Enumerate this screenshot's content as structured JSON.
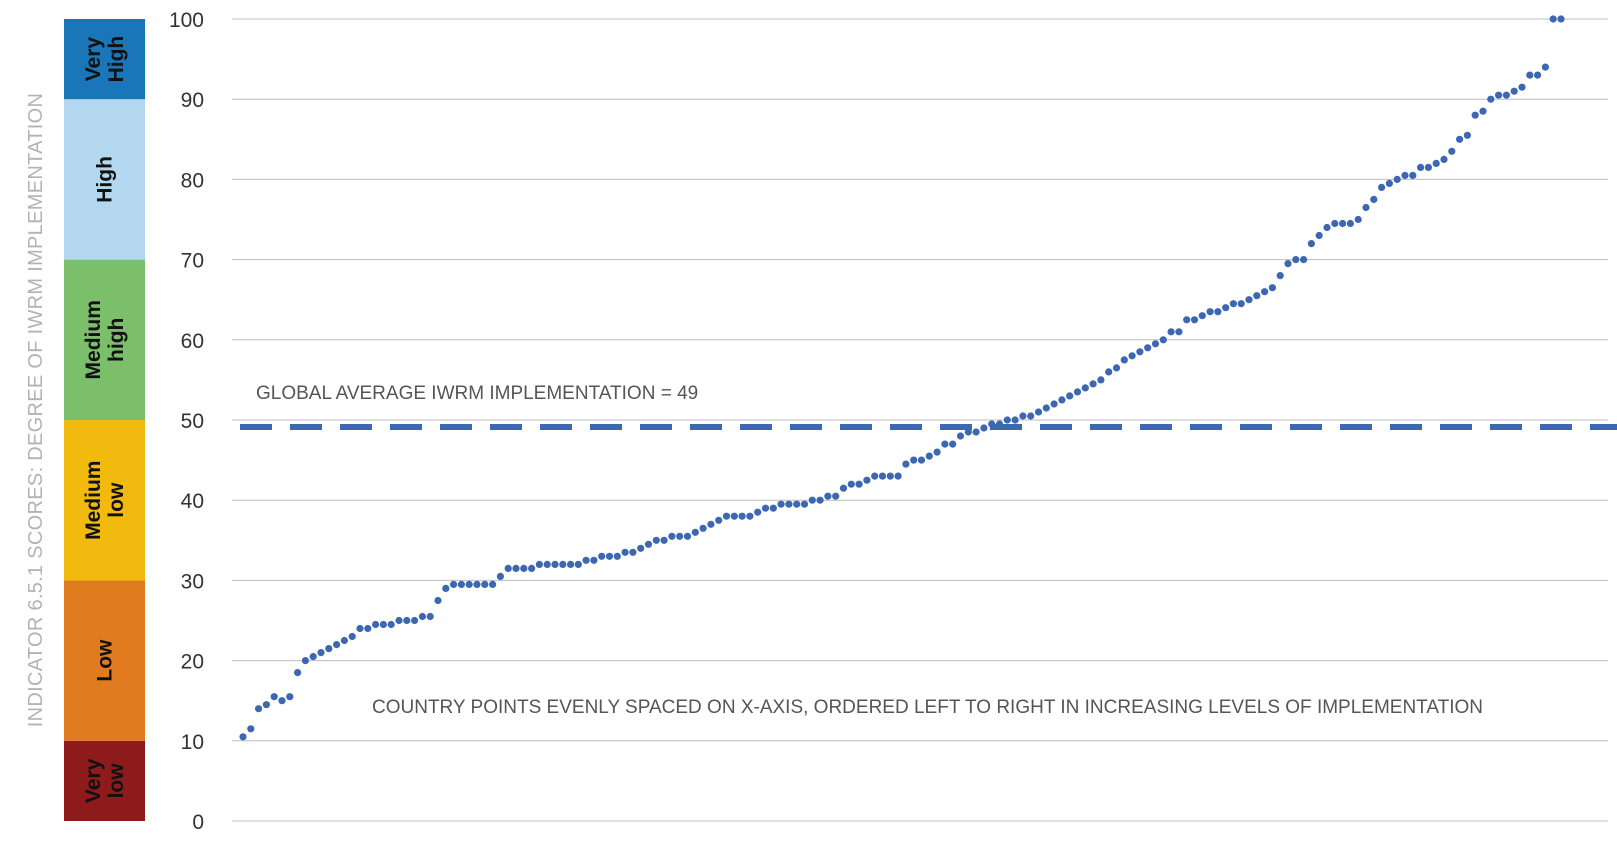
{
  "chart_data": {
    "type": "scatter",
    "ylabel": "INDICATOR 6.5.1 SCORES: DEGREE OF IWRM IMPLEMENTATION",
    "ylim": [
      0,
      100
    ],
    "yticks": [
      0,
      10,
      20,
      30,
      40,
      50,
      60,
      70,
      80,
      90,
      100
    ],
    "grid": true,
    "bands": [
      {
        "label": "Very\nlow",
        "from": 0,
        "to": 10,
        "color": "#8e1b1b"
      },
      {
        "label": "Low",
        "from": 10,
        "to": 30,
        "color": "#e07b20"
      },
      {
        "label": "Medium\nlow",
        "from": 30,
        "to": 50,
        "color": "#f2b90f"
      },
      {
        "label": "Medium\nhigh",
        "from": 50,
        "to": 70,
        "color": "#7cbf6b"
      },
      {
        "label": "High",
        "from": 70,
        "to": 90,
        "color": "#b2d7ee"
      },
      {
        "label": "Very\nHigh",
        "from": 90,
        "to": 100,
        "color": "#1976b8"
      }
    ],
    "reference_line": {
      "value": 49,
      "label": "GLOBAL AVERAGE IWRM IMPLEMENTATION = 49",
      "color": "#3d67b1"
    },
    "annotation": "COUNTRY POINTS EVENLY SPACED ON X-AXIS, ORDERED LEFT TO RIGHT IN INCREASING LEVELS OF IMPLEMENTATION",
    "series": [
      {
        "color": "#3d67b1",
        "values": [
          10.5,
          11.5,
          14,
          14.5,
          15.5,
          15,
          15.5,
          18.5,
          20,
          20.5,
          21,
          21.5,
          22,
          22.5,
          23,
          24,
          24,
          24.5,
          24.5,
          24.5,
          25,
          25,
          25,
          25.5,
          25.5,
          27.5,
          29,
          29.5,
          29.5,
          29.5,
          29.5,
          29.5,
          29.5,
          30.5,
          31.5,
          31.5,
          31.5,
          31.5,
          32,
          32,
          32,
          32,
          32,
          32,
          32.5,
          32.5,
          33,
          33,
          33,
          33.5,
          33.5,
          34,
          34.5,
          35,
          35,
          35.5,
          35.5,
          35.5,
          36,
          36.5,
          37,
          37.5,
          38,
          38,
          38,
          38,
          38.5,
          39,
          39,
          39.5,
          39.5,
          39.5,
          39.5,
          40,
          40,
          40.5,
          40.5,
          41.5,
          42,
          42,
          42.5,
          43,
          43,
          43,
          43,
          44.5,
          45,
          45,
          45.5,
          46,
          47,
          47,
          48,
          48.5,
          48.5,
          49,
          49.5,
          49.5,
          50,
          50,
          50.5,
          50.5,
          51,
          51.5,
          52,
          52.5,
          53,
          53.5,
          54,
          54.5,
          55,
          56,
          56.5,
          57.5,
          58,
          58.5,
          59,
          59.5,
          60,
          61,
          61,
          62.5,
          62.5,
          63,
          63.5,
          63.5,
          64,
          64.5,
          64.5,
          65,
          65.5,
          66,
          66.5,
          68,
          69.5,
          70,
          70,
          72,
          73,
          74,
          74.5,
          74.5,
          74.5,
          75,
          76.5,
          77.5,
          79,
          79.5,
          80,
          80.5,
          80.5,
          81.5,
          81.5,
          82,
          82.5,
          83.5,
          85,
          85.5,
          88,
          88.5,
          90,
          90.5,
          90.5,
          91,
          91.5,
          93,
          93,
          94,
          100,
          100
        ]
      }
    ]
  }
}
